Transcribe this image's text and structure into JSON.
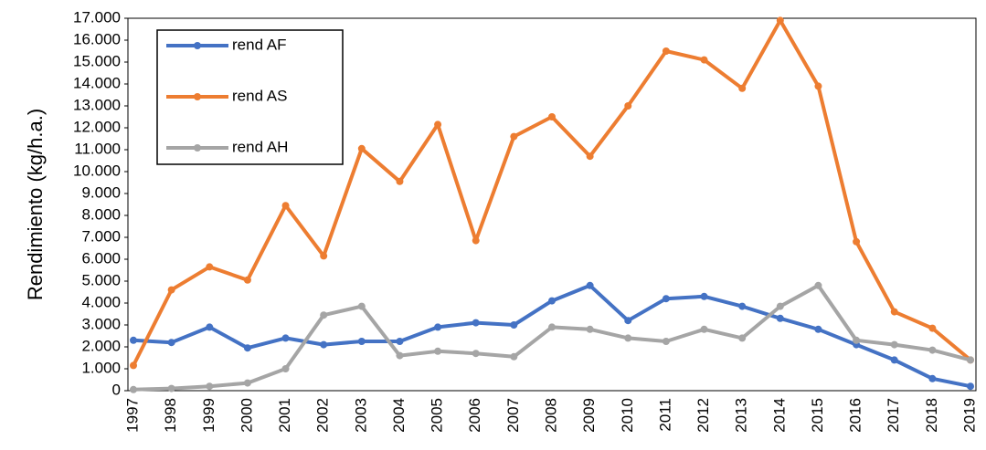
{
  "chart_data": {
    "type": "line",
    "y_label": "Rendimiento (kg/h.a.)",
    "categories": [
      "1997",
      "1998",
      "1999",
      "2000",
      "2001",
      "2002",
      "2003",
      "2004",
      "2005",
      "2006",
      "2007",
      "2008",
      "2009",
      "2010",
      "2011",
      "2012",
      "2013",
      "2014",
      "2015",
      "2016",
      "2017",
      "2018",
      "2019"
    ],
    "series": [
      {
        "name": "rend AF",
        "color": "#4472c4",
        "values": [
          2300,
          2200,
          2900,
          1950,
          2400,
          2100,
          2250,
          2250,
          2900,
          3100,
          3000,
          4100,
          4800,
          3200,
          4200,
          4300,
          3850,
          3300,
          2800,
          2100,
          1400,
          550,
          200
        ]
      },
      {
        "name": "rend AS",
        "color": "#ed7d31",
        "values": [
          1150,
          4600,
          5650,
          5050,
          8450,
          6150,
          11050,
          9550,
          12150,
          6850,
          11600,
          12500,
          10700,
          13000,
          15500,
          15100,
          13800,
          16900,
          13900,
          6800,
          3600,
          2850,
          1400
        ]
      },
      {
        "name": "rend AH",
        "color": "#a5a5a5",
        "values": [
          50,
          100,
          200,
          350,
          1000,
          3450,
          3850,
          1600,
          1800,
          1700,
          1550,
          2900,
          2800,
          2400,
          2250,
          2800,
          2400,
          3850,
          4800,
          2300,
          2100,
          1850,
          1400
        ]
      }
    ],
    "ylim": [
      0,
      17000
    ],
    "yticks": [
      0,
      {
        "value": 1000,
        "label": "1.000"
      },
      {
        "value": 2000,
        "label": "2.000"
      },
      {
        "value": 3000,
        "label": "3.000"
      },
      {
        "value": 4000,
        "label": "4.000"
      },
      {
        "value": 5000,
        "label": "5.000"
      },
      {
        "value": 6000,
        "label": "6.000"
      },
      {
        "value": 7000,
        "label": "7.000"
      },
      {
        "value": 8000,
        "label": "8.000"
      },
      {
        "value": 9000,
        "label": "9.000"
      },
      {
        "value": 10000,
        "label": "10.000"
      },
      {
        "value": 11000,
        "label": "11.000"
      },
      {
        "value": 12000,
        "label": "12.000"
      },
      {
        "value": 13000,
        "label": "13.000"
      },
      {
        "value": 14000,
        "label": "14.000"
      },
      {
        "value": 15000,
        "label": "15.000"
      },
      {
        "value": 16000,
        "label": "16.000"
      },
      {
        "value": 17000,
        "label": "17.000"
      }
    ],
    "legend": "top-left"
  }
}
